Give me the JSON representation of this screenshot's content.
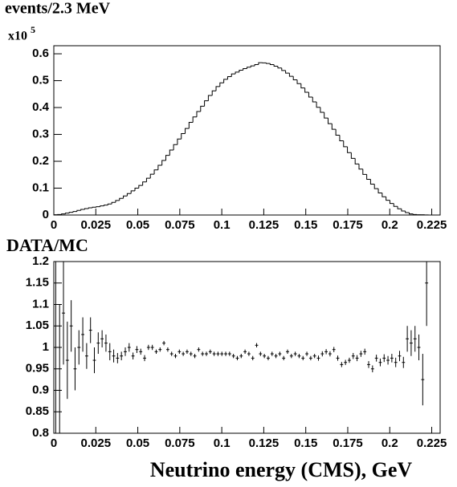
{
  "chart_data": [
    {
      "type": "histogram",
      "title": "events/2.3 MeV",
      "y_multiplier": "x10",
      "y_multiplier_exponent": "5",
      "bins": [
        0,
        0.0023,
        0.0046,
        0.0069,
        0.0092,
        0.0115,
        0.0138,
        0.0161,
        0.0184,
        0.0207,
        0.023,
        0.0253,
        0.0276,
        0.0299,
        0.0322,
        0.0345,
        0.0368,
        0.0391,
        0.0414,
        0.0437,
        0.046,
        0.0483,
        0.0506,
        0.0529,
        0.0552,
        0.0575,
        0.0598,
        0.0621,
        0.0644,
        0.0667,
        0.069,
        0.0713,
        0.0736,
        0.0759,
        0.0782,
        0.0805,
        0.0828,
        0.0851,
        0.0874,
        0.0897,
        0.092,
        0.0943,
        0.0966,
        0.0989,
        0.1012,
        0.1035,
        0.1058,
        0.1081,
        0.1104,
        0.1127,
        0.115,
        0.1173,
        0.1196,
        0.1219,
        0.1242,
        0.1265,
        0.1288,
        0.1311,
        0.1334,
        0.1357,
        0.138,
        0.1403,
        0.1426,
        0.1449,
        0.1472,
        0.1495,
        0.1518,
        0.1541,
        0.1564,
        0.1587,
        0.161,
        0.1633,
        0.1656,
        0.1679,
        0.1702,
        0.1725,
        0.1748,
        0.1771,
        0.1794,
        0.1817,
        0.184,
        0.1863,
        0.1886,
        0.1909,
        0.1932,
        0.1955,
        0.1978,
        0.2001,
        0.2024,
        0.2047,
        0.207,
        0.2093,
        0.2116,
        0.2139,
        0.2162,
        0.2185,
        0.2208,
        0.2231,
        0.2254,
        0.2277,
        0.23
      ],
      "counts": [
        0.001,
        0.002,
        0.004,
        0.007,
        0.01,
        0.013,
        0.017,
        0.021,
        0.024,
        0.027,
        0.029,
        0.031,
        0.034,
        0.037,
        0.041,
        0.047,
        0.054,
        0.062,
        0.071,
        0.08,
        0.09,
        0.1,
        0.11,
        0.123,
        0.137,
        0.152,
        0.168,
        0.185,
        0.203,
        0.222,
        0.242,
        0.262,
        0.283,
        0.303,
        0.322,
        0.345,
        0.365,
        0.385,
        0.405,
        0.425,
        0.445,
        0.462,
        0.478,
        0.492,
        0.505,
        0.515,
        0.525,
        0.532,
        0.539,
        0.545,
        0.55,
        0.555,
        0.56,
        0.567,
        0.566,
        0.564,
        0.56,
        0.554,
        0.547,
        0.538,
        0.528,
        0.516,
        0.503,
        0.489,
        0.473,
        0.457,
        0.439,
        0.421,
        0.401,
        0.382,
        0.361,
        0.34,
        0.319,
        0.297,
        0.276,
        0.254,
        0.232,
        0.211,
        0.19,
        0.171,
        0.151,
        0.133,
        0.115,
        0.098,
        0.082,
        0.068,
        0.055,
        0.043,
        0.032,
        0.023,
        0.015,
        0.009,
        0.004,
        0.002,
        0.001,
        0.001,
        0.0005,
        0,
        0,
        0
      ],
      "color": "#000000",
      "xlim": [
        0,
        0.23
      ],
      "ylim": [
        0,
        0.63
      ],
      "xticks": [
        0,
        0.025,
        0.05,
        0.075,
        0.1,
        0.125,
        0.15,
        0.175,
        0.2,
        0.225
      ],
      "yticks": [
        0,
        0.1,
        0.2,
        0.3,
        0.4,
        0.5,
        0.6
      ]
    },
    {
      "type": "errorbar",
      "title": "DATA/MC",
      "xlabel": "Neutrino energy (CMS), GeV",
      "x": [
        0.00115,
        0.00345,
        0.00575,
        0.00805,
        0.01035,
        0.01265,
        0.01495,
        0.01725,
        0.01955,
        0.02185,
        0.02415,
        0.02645,
        0.02875,
        0.03105,
        0.03335,
        0.03565,
        0.03795,
        0.04025,
        0.04255,
        0.04485,
        0.04715,
        0.04945,
        0.05175,
        0.05405,
        0.05635,
        0.05865,
        0.06095,
        0.06325,
        0.06555,
        0.06785,
        0.07015,
        0.07245,
        0.07475,
        0.07705,
        0.07935,
        0.08165,
        0.08395,
        0.08625,
        0.08855,
        0.09085,
        0.09315,
        0.09545,
        0.09775,
        0.10005,
        0.10235,
        0.10465,
        0.10695,
        0.10925,
        0.11155,
        0.11385,
        0.11615,
        0.11845,
        0.12075,
        0.12305,
        0.12535,
        0.12765,
        0.12995,
        0.13225,
        0.13455,
        0.13685,
        0.13915,
        0.14145,
        0.14375,
        0.14605,
        0.14835,
        0.15065,
        0.15295,
        0.15525,
        0.15755,
        0.15985,
        0.16215,
        0.16445,
        0.16675,
        0.16905,
        0.17135,
        0.17365,
        0.17595,
        0.17825,
        0.18055,
        0.18285,
        0.18515,
        0.18745,
        0.18975,
        0.19205,
        0.19435,
        0.19665,
        0.19895,
        0.20125,
        0.20355,
        0.20585,
        0.20815,
        0.21045,
        0.21275,
        0.21505,
        0.21735,
        0.21965,
        0.22195
      ],
      "values": [
        1.0,
        0.9,
        1.08,
        0.97,
        1.05,
        0.95,
        1.0,
        1.03,
        0.98,
        1.04,
        0.97,
        1.01,
        1.02,
        1.01,
        0.99,
        0.98,
        0.975,
        0.98,
        0.99,
        1.0,
        0.98,
        0.995,
        0.99,
        0.975,
        1.0,
        1.0,
        0.99,
        0.995,
        1.01,
        0.995,
        0.985,
        0.98,
        0.99,
        0.985,
        0.99,
        0.985,
        0.98,
        0.995,
        0.985,
        0.985,
        0.99,
        0.985,
        0.985,
        0.985,
        0.985,
        0.985,
        0.98,
        0.975,
        0.98,
        0.99,
        0.985,
        0.975,
        1.005,
        0.985,
        0.98,
        0.975,
        0.985,
        0.98,
        0.985,
        0.975,
        0.99,
        0.98,
        0.985,
        0.98,
        0.975,
        0.985,
        0.975,
        0.98,
        0.975,
        0.985,
        0.99,
        0.985,
        0.995,
        0.975,
        0.96,
        0.965,
        0.97,
        0.98,
        0.975,
        0.985,
        0.99,
        0.96,
        0.95,
        0.975,
        0.965,
        0.975,
        0.97,
        0.975,
        0.965,
        0.98,
        0.965,
        1.02,
        1.01,
        1.02,
        1.0,
        0.925,
        1.15
      ],
      "errors": [
        0.3,
        0.2,
        0.12,
        0.09,
        0.06,
        0.05,
        0.04,
        0.04,
        0.03,
        0.03,
        0.03,
        0.025,
        0.02,
        0.02,
        0.02,
        0.015,
        0.012,
        0.01,
        0.01,
        0.01,
        0.008,
        0.008,
        0.007,
        0.007,
        0.006,
        0.006,
        0.005,
        0.005,
        0.005,
        0.005,
        0.005,
        0.005,
        0.005,
        0.005,
        0.005,
        0.005,
        0.005,
        0.005,
        0.005,
        0.005,
        0.005,
        0.005,
        0.005,
        0.005,
        0.005,
        0.005,
        0.005,
        0.005,
        0.005,
        0.005,
        0.005,
        0.005,
        0.005,
        0.005,
        0.005,
        0.005,
        0.005,
        0.005,
        0.005,
        0.005,
        0.005,
        0.005,
        0.005,
        0.005,
        0.005,
        0.005,
        0.005,
        0.005,
        0.006,
        0.006,
        0.006,
        0.006,
        0.006,
        0.006,
        0.006,
        0.006,
        0.006,
        0.007,
        0.007,
        0.007,
        0.007,
        0.008,
        0.008,
        0.008,
        0.009,
        0.009,
        0.01,
        0.01,
        0.011,
        0.012,
        0.013,
        0.03,
        0.03,
        0.03,
        0.03,
        0.06,
        0.1
      ],
      "color": "#000000",
      "xlim": [
        0,
        0.23
      ],
      "ylim": [
        0.8,
        1.2
      ],
      "xticks": [
        0,
        0.025,
        0.05,
        0.075,
        0.1,
        0.125,
        0.15,
        0.175,
        0.2,
        0.225
      ],
      "yticks": [
        0.8,
        0.85,
        0.9,
        0.95,
        1,
        1.05,
        1.1,
        1.15,
        1.2
      ]
    }
  ]
}
